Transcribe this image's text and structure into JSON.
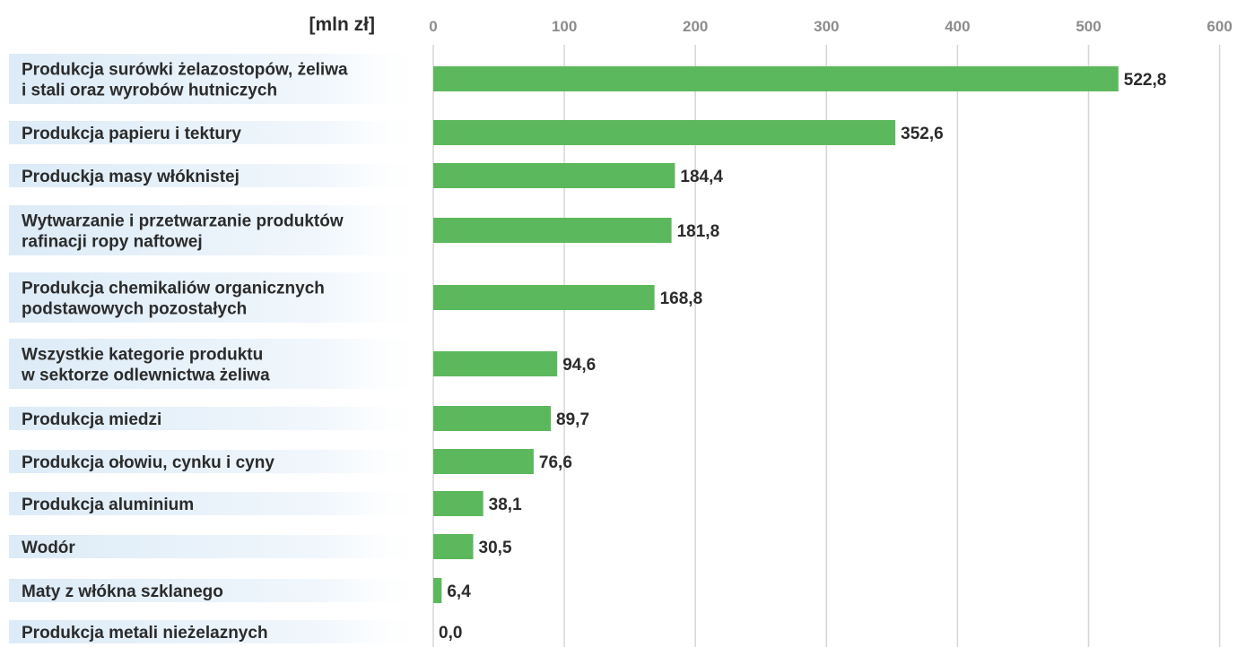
{
  "chart_data": {
    "type": "bar",
    "orientation": "horizontal",
    "unit_label": "[mln zł]",
    "xlim": [
      0,
      600
    ],
    "ticks": [
      "0",
      "100",
      "200",
      "300",
      "400",
      "500",
      "600"
    ],
    "grid": true,
    "bar_color": "#5cb85c",
    "categories": [
      [
        "Produkcja surówki żelazostopów, żeliwa",
        "i stali oraz wyrobów hutniczych"
      ],
      [
        "Produkcja papieru i tektury"
      ],
      [
        "Produckja masy włóknistej"
      ],
      [
        "Wytwarzanie i przetwarzanie produktów",
        "rafinacji ropy naftowej"
      ],
      [
        "Produkcja chemikaliów organicznych",
        "podstawowych pozostałych"
      ],
      [
        "Wszystkie kategorie produktu",
        "w sektorze odlewnictwa żeliwa"
      ],
      [
        "Produkcja miedzi"
      ],
      [
        "Produkcja ołowiu, cynku i cyny"
      ],
      [
        "Produkcja aluminium"
      ],
      [
        "Wodór"
      ],
      [
        "Maty z włókna szklanego"
      ],
      [
        "Produkcja metali nieżelaznych"
      ]
    ],
    "values": [
      522.8,
      352.6,
      184.4,
      181.8,
      168.8,
      94.6,
      89.7,
      76.6,
      38.1,
      30.5,
      6.4,
      0.0
    ],
    "value_labels": [
      "522,8",
      "352,6",
      "184,4",
      "181,8",
      "168,8",
      "94,6",
      "89,7",
      "76,6",
      "38,1",
      "30,5",
      "6,4",
      "0,0"
    ]
  }
}
